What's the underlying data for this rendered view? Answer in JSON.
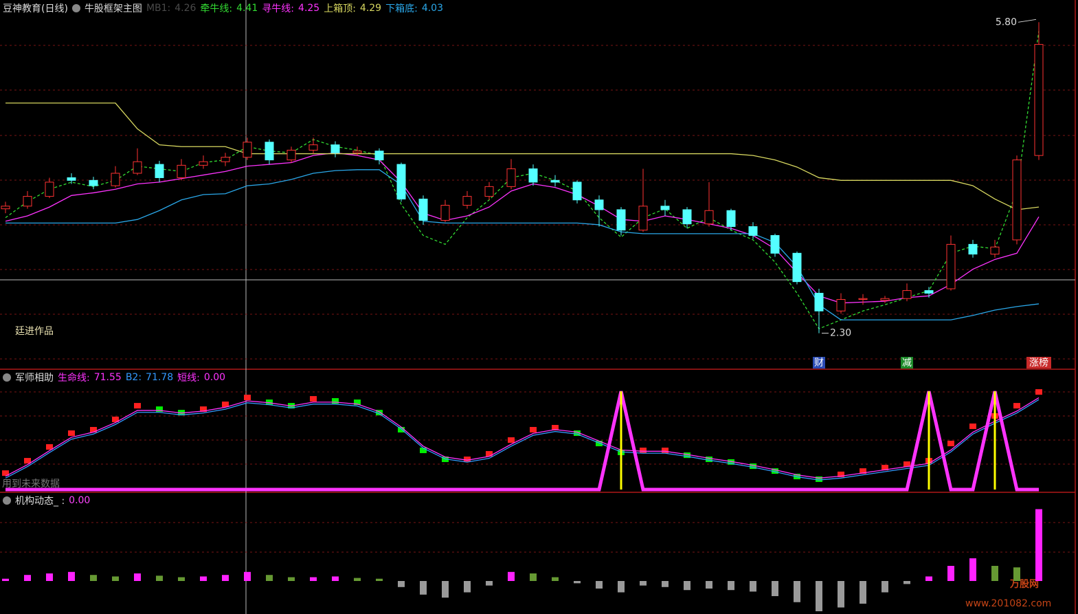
{
  "header": {
    "title": "豆神教育(日线)",
    "signature": "廷进作品"
  },
  "watermark": {
    "brand": "万股网",
    "url": "www.201082.com"
  },
  "chart_data": [
    {
      "type": "candlestick",
      "title": "牛股框架主图",
      "ylim": [
        1.91,
        6.05
      ],
      "up_color": "#ff3232",
      "down_color": "#54ffff",
      "open": [
        3.7,
        3.73,
        3.84,
        4.05,
        4.02,
        3.96,
        4.1,
        4.2,
        4.05,
        4.19,
        4.23,
        4.28,
        4.45,
        4.25,
        4.36,
        4.42,
        4.33,
        4.35,
        4.2,
        3.81,
        3.57,
        3.74,
        3.84,
        3.95,
        4.15,
        4.02,
        4.0,
        3.8,
        3.69,
        3.46,
        3.73,
        3.69,
        3.53,
        3.68,
        3.5,
        3.4,
        3.2,
        2.75,
        2.55,
        2.68,
        2.67,
        2.69,
        2.78,
        2.8,
        3.3,
        3.19,
        3.35,
        4.3
      ],
      "high": [
        3.78,
        3.9,
        4.05,
        4.1,
        4.06,
        4.18,
        4.38,
        4.24,
        4.26,
        4.3,
        4.33,
        4.5,
        4.48,
        4.4,
        4.5,
        4.46,
        4.4,
        4.38,
        4.22,
        3.85,
        3.8,
        3.9,
        4.0,
        4.26,
        4.2,
        4.08,
        4.02,
        3.85,
        3.72,
        4.15,
        3.8,
        3.72,
        4.0,
        3.7,
        3.55,
        3.42,
        3.22,
        2.8,
        2.75,
        2.74,
        2.72,
        2.86,
        2.82,
        3.4,
        3.35,
        3.35,
        4.3,
        5.8
      ],
      "low": [
        3.65,
        3.7,
        3.82,
        3.98,
        3.92,
        3.94,
        4.08,
        4.0,
        4.02,
        4.15,
        4.18,
        4.25,
        4.2,
        4.22,
        4.32,
        4.28,
        4.3,
        4.2,
        3.78,
        3.52,
        3.55,
        3.7,
        3.8,
        3.92,
        3.96,
        3.95,
        3.76,
        3.5,
        3.4,
        3.44,
        3.62,
        3.48,
        3.5,
        3.46,
        3.36,
        3.16,
        2.85,
        2.3,
        2.52,
        2.62,
        2.64,
        2.66,
        2.7,
        2.78,
        3.15,
        3.15,
        3.3,
        4.25
      ],
      "close": [
        3.73,
        3.84,
        4.0,
        4.02,
        3.96,
        4.1,
        4.23,
        4.05,
        4.19,
        4.23,
        4.28,
        4.45,
        4.25,
        4.36,
        4.42,
        4.33,
        4.35,
        4.25,
        3.81,
        3.57,
        3.74,
        3.84,
        3.95,
        4.15,
        4.0,
        4.0,
        3.8,
        3.69,
        3.46,
        3.73,
        3.69,
        3.53,
        3.68,
        3.5,
        3.4,
        3.2,
        2.88,
        2.55,
        2.68,
        2.69,
        2.69,
        2.78,
        2.75,
        3.3,
        3.19,
        3.27,
        4.25,
        5.55
      ],
      "extreme_labels": {
        "max": "5.80",
        "min": "2.30"
      },
      "series": [
        {
          "name": "MB1:",
          "color": "#4a4a4a",
          "readout": 4.26
        },
        {
          "name": "牵牛线:",
          "color": "#33dd33",
          "readout": 4.41,
          "dashed": true,
          "values": [
            3.6,
            3.78,
            3.92,
            4.0,
            3.95,
            4.02,
            4.18,
            4.15,
            4.12,
            4.22,
            4.25,
            4.4,
            4.35,
            4.33,
            4.48,
            4.4,
            4.36,
            4.3,
            3.75,
            3.4,
            3.3,
            3.6,
            3.8,
            4.05,
            4.1,
            4.02,
            3.9,
            3.6,
            3.38,
            3.6,
            3.7,
            3.48,
            3.6,
            3.46,
            3.35,
            3.1,
            2.75,
            2.35,
            2.45,
            2.55,
            2.62,
            2.7,
            2.78,
            3.2,
            3.28,
            3.25,
            3.9,
            5.7
          ]
        },
        {
          "name": "寻牛线:",
          "color": "#ff33ff",
          "readout": 4.25,
          "values": [
            3.56,
            3.62,
            3.72,
            3.85,
            3.88,
            3.92,
            3.98,
            4.0,
            4.04,
            4.08,
            4.12,
            4.18,
            4.2,
            4.22,
            4.3,
            4.33,
            4.3,
            4.25,
            4.0,
            3.65,
            3.57,
            3.62,
            3.72,
            3.9,
            3.98,
            3.94,
            3.86,
            3.73,
            3.58,
            3.56,
            3.62,
            3.58,
            3.53,
            3.48,
            3.4,
            3.25,
            2.98,
            2.72,
            2.64,
            2.65,
            2.66,
            2.7,
            2.72,
            2.85,
            3.02,
            3.13,
            3.2,
            3.61
          ]
        },
        {
          "name": "上箱顶:",
          "color": "#d8d860",
          "readout": 4.29,
          "values": [
            4.89,
            4.89,
            4.89,
            4.89,
            4.89,
            4.89,
            4.6,
            4.42,
            4.4,
            4.4,
            4.4,
            4.32,
            4.32,
            4.32,
            4.32,
            4.32,
            4.32,
            4.32,
            4.32,
            4.32,
            4.32,
            4.32,
            4.32,
            4.32,
            4.32,
            4.32,
            4.32,
            4.32,
            4.32,
            4.32,
            4.32,
            4.32,
            4.32,
            4.32,
            4.3,
            4.25,
            4.17,
            4.05,
            4.02,
            4.02,
            4.02,
            4.02,
            4.02,
            4.02,
            3.96,
            3.81,
            3.69,
            3.72
          ]
        },
        {
          "name": "下箱底:",
          "color": "#2aa8ea",
          "readout": 4.03,
          "values": [
            3.54,
            3.54,
            3.54,
            3.54,
            3.54,
            3.54,
            3.58,
            3.68,
            3.8,
            3.86,
            3.87,
            3.96,
            3.98,
            4.03,
            4.1,
            4.13,
            4.14,
            4.14,
            3.97,
            3.56,
            3.54,
            3.54,
            3.54,
            3.54,
            3.54,
            3.54,
            3.54,
            3.52,
            3.44,
            3.42,
            3.42,
            3.42,
            3.42,
            3.42,
            3.42,
            3.32,
            3.05,
            2.62,
            2.45,
            2.45,
            2.45,
            2.45,
            2.45,
            2.45,
            2.5,
            2.56,
            2.6,
            2.63
          ]
        }
      ],
      "signals": [
        null,
        null,
        null,
        null,
        null,
        null,
        null,
        null,
        null,
        null,
        null,
        null,
        null,
        null,
        null,
        null,
        null,
        null,
        null,
        null,
        null,
        null,
        null,
        null,
        null,
        null,
        null,
        null,
        null,
        null,
        null,
        null,
        null,
        null,
        null,
        null,
        null,
        {
          "text": "财",
          "color": "#2a4bb5"
        },
        null,
        null,
        null,
        {
          "text": "减",
          "color": "#1d8a2a"
        },
        null,
        null,
        null,
        null,
        null,
        {
          "text": "涨榜",
          "color": "#c82a2a"
        }
      ]
    },
    {
      "type": "indicator",
      "title": "军师相助",
      "ylim": [
        0,
        90
      ],
      "note": "用到未来数据",
      "bars": {
        "up_color": "#ff2020",
        "down_color": "#00ee00",
        "values": [
          12.9,
          22.6,
          33.4,
          44.2,
          46.9,
          55.0,
          65.7,
          63.0,
          60.3,
          63.0,
          66.8,
          72.2,
          68.4,
          65.7,
          71.1,
          69.5,
          68.4,
          60.3,
          46.9,
          30.7,
          23.7,
          23.7,
          28.0,
          38.8,
          46.9,
          48.5,
          44.2,
          36.1,
          29.1,
          30.7,
          30.7,
          26.9,
          23.7,
          21.6,
          18.3,
          14.5,
          10.2,
          8.1,
          11.9,
          14.5,
          17.2,
          19.9,
          22.6,
          36.1,
          49.6,
          57.7,
          65.7,
          76.5
        ]
      },
      "series": [
        {
          "name": "生命线:",
          "color": "#ff33ff",
          "readout": 71.55,
          "values": [
            10.5,
            19.5,
            30.5,
            41,
            45,
            52.5,
            62,
            62,
            60,
            61.5,
            64.5,
            69.5,
            68,
            65.5,
            68.5,
            68.5,
            67,
            61,
            49,
            34,
            25.5,
            23,
            26,
            35.5,
            44,
            47,
            45,
            38,
            31,
            30,
            30,
            27.5,
            24.5,
            22,
            19,
            15.5,
            11.5,
            9,
            10.5,
            13,
            15.5,
            18,
            20.5,
            31,
            45,
            53.5,
            61.5,
            72
          ]
        },
        {
          "name": "B2:",
          "color": "#3399ff",
          "readout": 71.78,
          "values": [
            9,
            18,
            29,
            39.5,
            43.5,
            51,
            60.5,
            60.5,
            58.5,
            60,
            63,
            68,
            66.5,
            64,
            67,
            67,
            65.5,
            59.5,
            47.5,
            32.5,
            24,
            21.5,
            24.5,
            34,
            42.5,
            45.5,
            43.5,
            36.5,
            29.5,
            28.5,
            28.5,
            26,
            23,
            20.5,
            17.5,
            14,
            10,
            7.5,
            9,
            11.5,
            14,
            16.5,
            19,
            29.5,
            43.5,
            52,
            60,
            70.5
          ]
        },
        {
          "name": "短线:",
          "color": "#ff33ff",
          "fill": "#ffff00",
          "spike": true,
          "readout": {
            "value": 0,
            "label": "0.00"
          },
          "values": [
            0,
            0,
            0,
            0,
            0,
            0,
            0,
            0,
            0,
            0,
            0,
            0,
            0,
            0,
            0,
            0,
            0,
            0,
            0,
            0,
            0,
            0,
            0,
            0,
            0,
            0,
            0,
            0,
            77,
            0,
            0,
            0,
            0,
            0,
            0,
            0,
            0,
            0,
            0,
            0,
            0,
            0,
            77,
            0,
            0,
            77,
            0,
            0
          ]
        }
      ]
    },
    {
      "type": "bar",
      "title": "机构动态_ :",
      "readout": {
        "value": 0,
        "label": "0.00"
      },
      "ylim": [
        -4,
        10
      ],
      "up_color": "#ff22ff",
      "fall_color": "#669933",
      "negative_color": "#9a9a9a",
      "values": [
        0.3,
        0.8,
        1.0,
        1.2,
        0.8,
        0.6,
        1.0,
        0.7,
        0.5,
        0.6,
        0.8,
        1.2,
        0.8,
        0.5,
        0.5,
        0.6,
        0.4,
        0.3,
        -0.8,
        -1.8,
        -2.2,
        -1.5,
        -0.6,
        1.2,
        1.0,
        0.5,
        -0.3,
        -1.0,
        -1.5,
        -0.6,
        -0.8,
        -1.2,
        -1.0,
        -1.2,
        -1.4,
        -2.0,
        -2.8,
        -4.0,
        -3.5,
        -3.0,
        -1.5,
        -0.4,
        0.6,
        2.0,
        3.0,
        2.0,
        1.8,
        9.5
      ]
    }
  ]
}
